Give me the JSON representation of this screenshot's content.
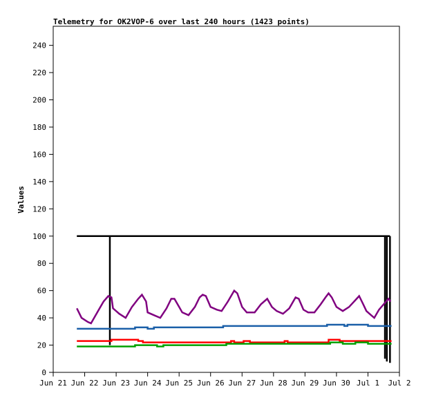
{
  "chart_data": {
    "type": "line",
    "title": "Telemetry for OK2VOP-6 over last 240 hours (1423 points)",
    "xlabel": "",
    "ylabel": "Values",
    "ylim": [
      0,
      254
    ],
    "yticks": [
      0,
      20,
      40,
      60,
      80,
      100,
      120,
      140,
      160,
      180,
      200,
      220,
      240
    ],
    "x_range": [
      "Jun 21",
      "Jul 2"
    ],
    "xticks": [
      "Jun 21",
      "Jun 22",
      "Jun 23",
      "Jun 24",
      "Jun 25",
      "Jun 26",
      "Jun 27",
      "Jun 28",
      "Jun 29",
      "Jun 30",
      "Jul 1",
      "Jul 2"
    ],
    "grid": false,
    "legend": "none",
    "series": [
      {
        "color": "#000000",
        "points": [
          [
            0.75,
            100
          ],
          [
            10.7,
            100
          ]
        ],
        "spikes": [
          {
            "x": 1.8,
            "top": 100,
            "bottom": 20
          },
          {
            "x": 10.54,
            "top": 100,
            "bottom": 10
          },
          {
            "x": 10.6,
            "top": 100,
            "bottom": 8
          },
          {
            "x": 10.7,
            "top": 100,
            "bottom": 7
          }
        ]
      },
      {
        "color": "#800080",
        "points": [
          [
            0.75,
            47
          ],
          [
            0.9,
            40
          ],
          [
            1.1,
            37
          ],
          [
            1.2,
            36
          ],
          [
            1.45,
            46
          ],
          [
            1.6,
            52
          ],
          [
            1.75,
            56
          ],
          [
            1.85,
            55
          ],
          [
            1.9,
            47
          ],
          [
            2.1,
            43
          ],
          [
            2.3,
            40
          ],
          [
            2.5,
            48
          ],
          [
            2.7,
            54
          ],
          [
            2.82,
            57
          ],
          [
            2.95,
            52
          ],
          [
            3.0,
            44
          ],
          [
            3.2,
            42
          ],
          [
            3.4,
            40
          ],
          [
            3.6,
            47
          ],
          [
            3.75,
            54
          ],
          [
            3.85,
            54
          ],
          [
            4.0,
            48
          ],
          [
            4.1,
            44
          ],
          [
            4.3,
            42
          ],
          [
            4.5,
            48
          ],
          [
            4.65,
            55
          ],
          [
            4.75,
            57
          ],
          [
            4.85,
            56
          ],
          [
            5.0,
            48
          ],
          [
            5.2,
            46
          ],
          [
            5.35,
            45
          ],
          [
            5.55,
            52
          ],
          [
            5.75,
            60
          ],
          [
            5.85,
            58
          ],
          [
            6.0,
            48
          ],
          [
            6.15,
            44
          ],
          [
            6.4,
            44
          ],
          [
            6.6,
            50
          ],
          [
            6.8,
            54
          ],
          [
            6.95,
            48
          ],
          [
            7.1,
            45
          ],
          [
            7.3,
            43
          ],
          [
            7.5,
            47
          ],
          [
            7.7,
            55
          ],
          [
            7.8,
            54
          ],
          [
            7.95,
            46
          ],
          [
            8.1,
            44
          ],
          [
            8.3,
            44
          ],
          [
            8.5,
            50
          ],
          [
            8.65,
            55
          ],
          [
            8.75,
            58
          ],
          [
            8.85,
            55
          ],
          [
            9.0,
            48
          ],
          [
            9.2,
            45
          ],
          [
            9.4,
            48
          ],
          [
            9.6,
            53
          ],
          [
            9.72,
            56
          ],
          [
            9.85,
            50
          ],
          [
            9.95,
            45
          ],
          [
            10.1,
            42
          ],
          [
            10.2,
            40
          ],
          [
            10.35,
            46
          ],
          [
            10.5,
            50
          ],
          [
            10.65,
            54
          ],
          [
            10.72,
            52
          ]
        ]
      },
      {
        "color": "#1a5fa8",
        "points": [
          [
            0.75,
            32
          ],
          [
            2.6,
            32
          ],
          [
            2.6,
            33
          ],
          [
            3.0,
            33
          ],
          [
            3.0,
            32
          ],
          [
            3.2,
            32
          ],
          [
            3.2,
            33
          ],
          [
            5.4,
            33
          ],
          [
            5.4,
            34
          ],
          [
            8.7,
            34
          ],
          [
            8.7,
            35
          ],
          [
            9.25,
            35
          ],
          [
            9.25,
            34
          ],
          [
            9.35,
            34
          ],
          [
            9.35,
            35
          ],
          [
            10.0,
            35
          ],
          [
            10.0,
            34
          ],
          [
            10.75,
            34
          ]
        ]
      },
      {
        "color": "#ff0000",
        "points": [
          [
            0.75,
            23
          ],
          [
            1.85,
            23
          ],
          [
            1.85,
            24
          ],
          [
            2.7,
            24
          ],
          [
            2.7,
            23
          ],
          [
            2.85,
            23
          ],
          [
            2.85,
            22
          ],
          [
            5.65,
            22
          ],
          [
            5.65,
            23
          ],
          [
            5.75,
            23
          ],
          [
            5.75,
            22
          ],
          [
            6.05,
            22
          ],
          [
            6.05,
            23
          ],
          [
            6.25,
            23
          ],
          [
            6.25,
            22
          ],
          [
            7.35,
            22
          ],
          [
            7.35,
            23
          ],
          [
            7.45,
            23
          ],
          [
            7.45,
            22
          ],
          [
            8.75,
            22
          ],
          [
            8.75,
            24
          ],
          [
            9.1,
            24
          ],
          [
            9.1,
            23
          ],
          [
            10.75,
            23
          ]
        ]
      },
      {
        "color": "#00a000",
        "points": [
          [
            0.75,
            19
          ],
          [
            2.6,
            19
          ],
          [
            2.6,
            20
          ],
          [
            3.3,
            20
          ],
          [
            3.3,
            19
          ],
          [
            3.5,
            19
          ],
          [
            3.5,
            20
          ],
          [
            5.5,
            20
          ],
          [
            5.5,
            21
          ],
          [
            8.8,
            21
          ],
          [
            8.8,
            22
          ],
          [
            9.2,
            22
          ],
          [
            9.2,
            21
          ],
          [
            9.6,
            21
          ],
          [
            9.6,
            22
          ],
          [
            10.0,
            22
          ],
          [
            10.0,
            21
          ],
          [
            10.75,
            21
          ]
        ]
      }
    ]
  }
}
